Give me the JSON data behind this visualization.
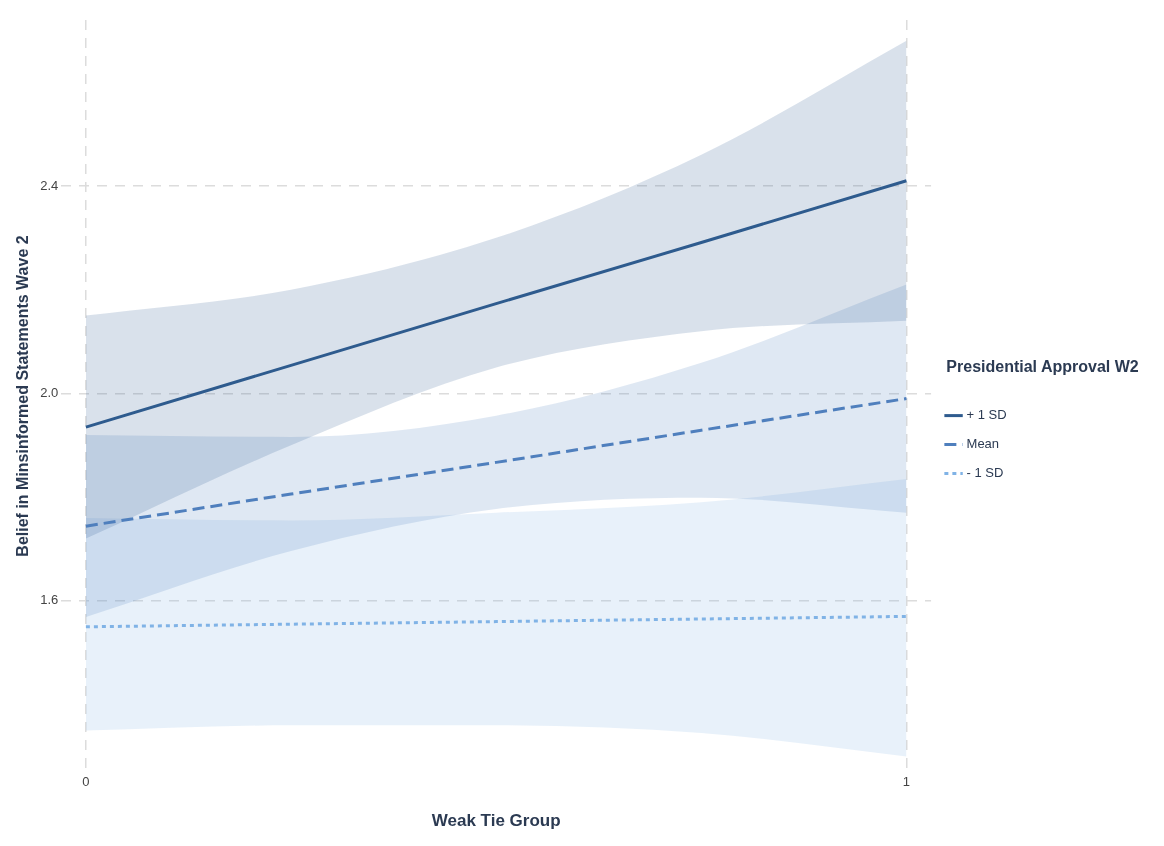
{
  "chart_data": {
    "type": "line",
    "xlabel": "Weak Tie Group",
    "ylabel": "Belief in Minsinformed Statements Wave 2",
    "legend_title": "Presidential Approval W2",
    "x": [
      0,
      0.25,
      0.5,
      0.75,
      1
    ],
    "xlim": [
      -0.03,
      1.03
    ],
    "xticks": [
      0,
      1
    ],
    "ylim": [
      1.27,
      2.72
    ],
    "yticks": [
      1.6,
      {
        "value": 2,
        "label": "2.0"
      },
      2.4
    ],
    "grid": true,
    "legend": "right",
    "marker": "none",
    "series": [
      {
        "name": "+ 1 SD",
        "color": "#2e5b8e",
        "line_style": "solid",
        "values": [
          1.935,
          2.054,
          2.173,
          2.291,
          2.41
        ],
        "lower": [
          1.72,
          1.9,
          2.05,
          2.12,
          2.14
        ],
        "upper": [
          2.15,
          2.2,
          2.3,
          2.46,
          2.68
        ]
      },
      {
        "name": "Mean",
        "color": "#4f7fbd",
        "line_style": "dashed",
        "values": [
          1.744,
          1.806,
          1.867,
          1.929,
          1.99
        ],
        "lower": [
          1.569,
          1.696,
          1.777,
          1.799,
          1.77
        ],
        "upper": [
          1.92,
          1.916,
          1.957,
          2.059,
          2.21
        ]
      },
      {
        "name": "- 1 SD",
        "color": "#80b3e6",
        "line_style": "dotted",
        "values": [
          1.55,
          1.555,
          1.56,
          1.565,
          1.57
        ],
        "lower": [
          1.35,
          1.36,
          1.36,
          1.345,
          1.3
        ],
        "upper": [
          1.76,
          1.755,
          1.77,
          1.79,
          1.835
        ]
      }
    ]
  }
}
